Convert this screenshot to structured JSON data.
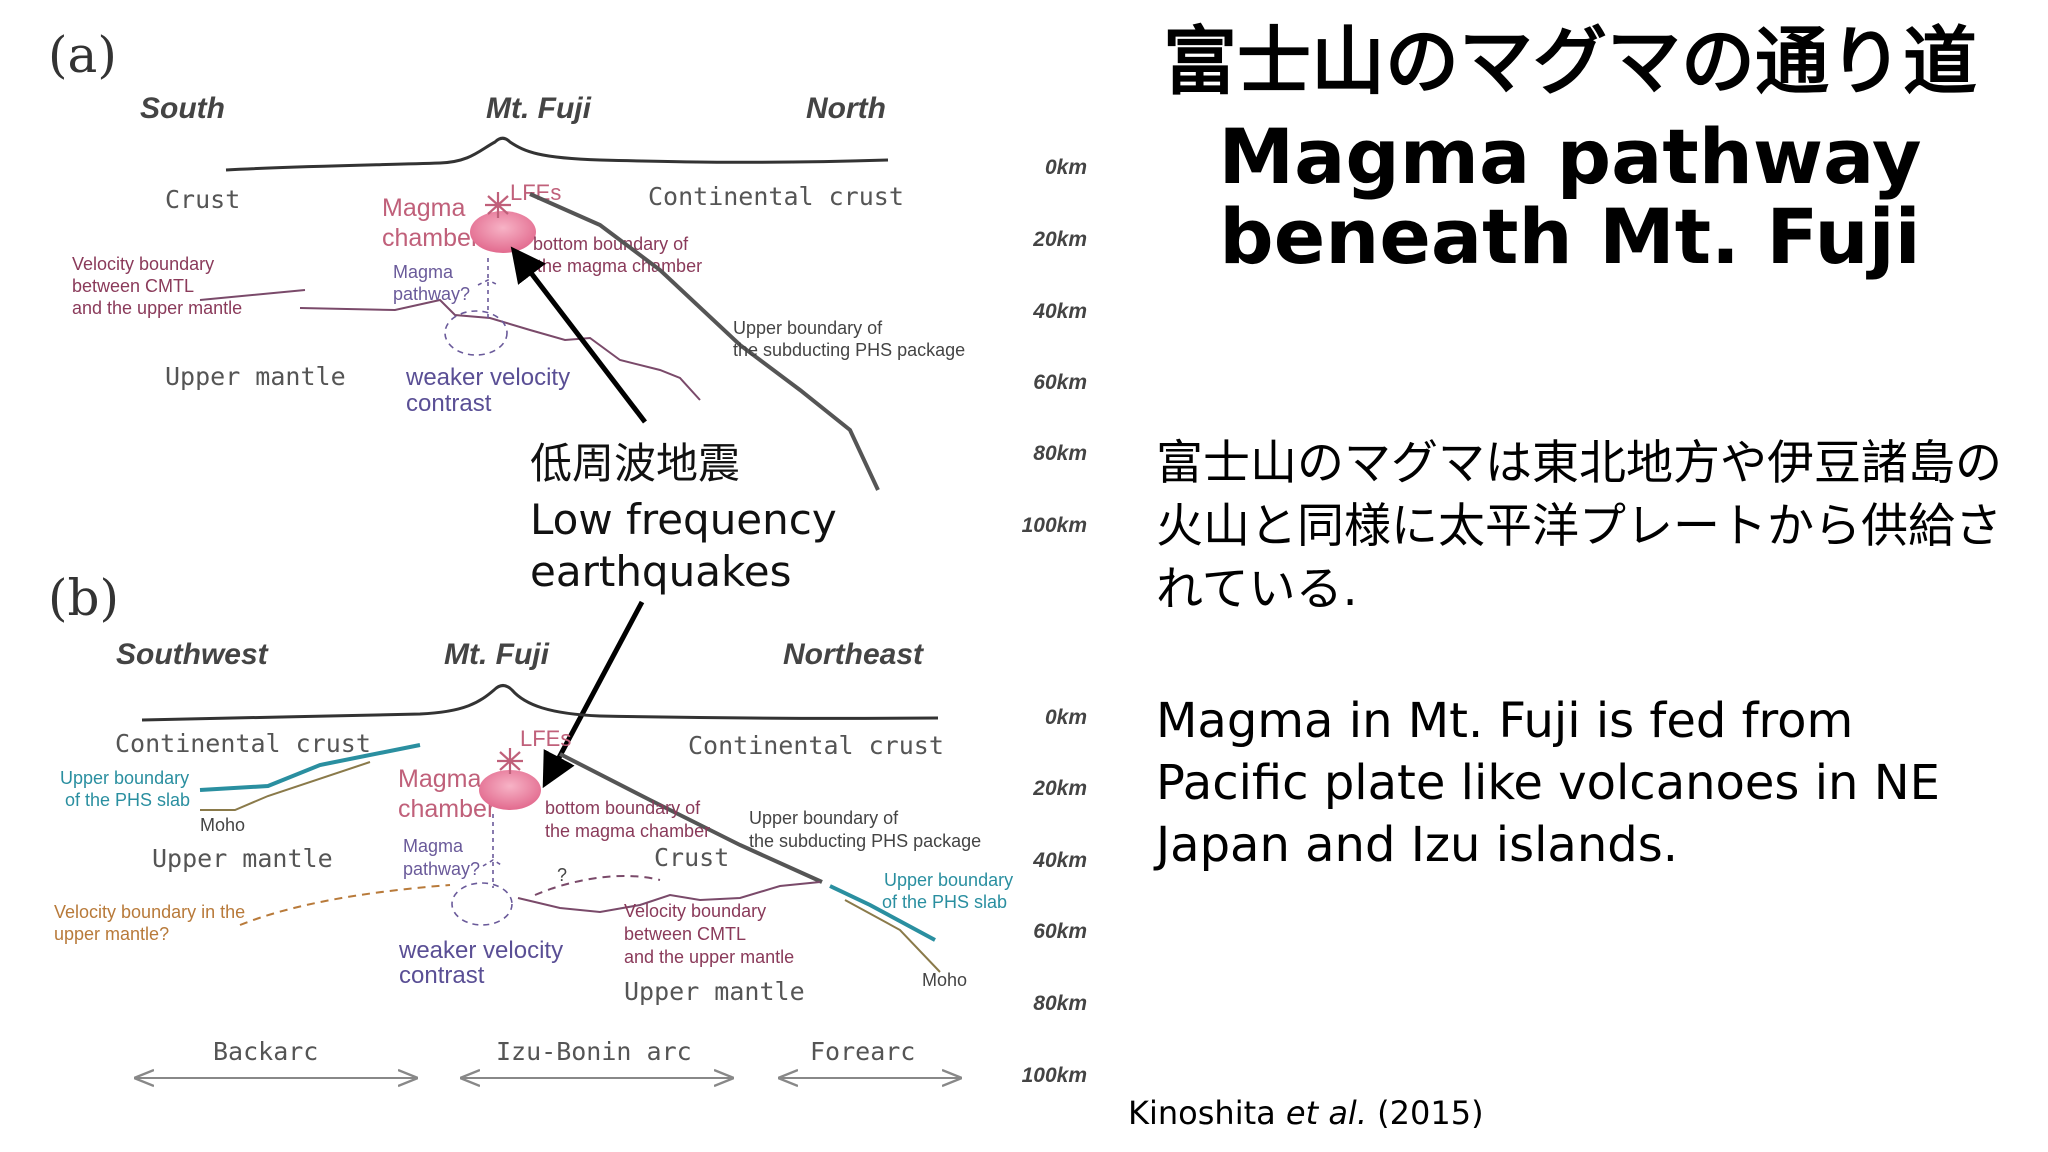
{
  "panel_a": {
    "label": "(a)",
    "directions": {
      "left": "South",
      "center": "Mt. Fuji",
      "right": "North"
    },
    "labels": {
      "crust": "Crust",
      "continental_crust": "Continental crust",
      "magma_chamber_line1": "Magma",
      "magma_chamber_line2": "chamber",
      "lfes": "LFEs",
      "bottom_boundary_line1": "bottom boundary of",
      "bottom_boundary_line2": "the magma chamber",
      "velocity_boundary_line1": "Velocity boundary",
      "velocity_boundary_line2": "between CMTL",
      "velocity_boundary_line3": "and the upper mantle",
      "magma_pathway_line1": "Magma",
      "magma_pathway_line2": "pathway?",
      "upper_boundary_line1": "Upper boundary of",
      "upper_boundary_line2": "the subducting PHS package",
      "upper_mantle": "Upper mantle",
      "weaker_velocity_line1": "weaker velocity",
      "weaker_velocity_line2": "contrast"
    }
  },
  "panel_b": {
    "label": "(b)",
    "directions": {
      "left": "Southwest",
      "center": "Mt. Fuji",
      "right": "Northeast"
    },
    "labels": {
      "continental_crust_left": "Continental crust",
      "continental_crust_right": "Continental crust",
      "lfes": "LFEs",
      "upper_boundary_phs_line1": "Upper boundary",
      "upper_boundary_phs_line2": "of the PHS slab",
      "moho_left": "Moho",
      "magma_chamber_line1": "Magma",
      "magma_chamber_line2": "chamber",
      "bottom_boundary_line1": "bottom boundary of",
      "bottom_boundary_line2": "the magma chamber",
      "upper_boundary_sub_line1": "Upper boundary of",
      "upper_boundary_sub_line2": "the subducting PHS package",
      "upper_mantle_left": "Upper mantle",
      "crust": "Crust",
      "magma_pathway_line1": "Magma",
      "magma_pathway_line2": "pathway?",
      "question": "?",
      "upper_boundary_slab_line1": "Upper boundary",
      "upper_boundary_slab_line2": "of the PHS slab",
      "velocity_boundary_left_line1": "Velocity boundary in the",
      "velocity_boundary_left_line2": "upper mantle?",
      "velocity_boundary_mid_line1": "Velocity boundary",
      "velocity_boundary_mid_line2": "between CMTL",
      "velocity_boundary_mid_line3": "and the upper mantle",
      "weaker_velocity_line1": "weaker velocity",
      "weaker_velocity_line2": "contrast",
      "moho_right": "Moho",
      "upper_mantle_bottom": "Upper mantle",
      "backarc": "Backarc",
      "izu_bonin_arc": "Izu-Bonin arc",
      "forearc": "Forearc"
    }
  },
  "depth_labels": [
    "0km",
    "20km",
    "40km",
    "60km",
    "80km",
    "100km"
  ],
  "annotation": {
    "jp": "低周波地震",
    "en_line1": "Low frequency",
    "en_line2": "earthquakes"
  },
  "title": {
    "jp": "富士山のマグマの通り道",
    "en_line1": "Magma pathway",
    "en_line2": "beneath Mt. Fuji"
  },
  "body": {
    "jp": "富士山のマグマは東北地方や伊豆諸島の火山と同様に太平洋プレートから供給されている.",
    "en": "Magma in Mt. Fuji is fed from Pacific plate like volcanoes in NE Japan and Izu islands."
  },
  "citation": {
    "author": "Kinoshita",
    "etal": "et al.",
    "year": "(2015)"
  },
  "colors": {
    "magma": "#e26a8e",
    "slab_teal": "#2a8fa0",
    "moho_olive": "#8a7a4a",
    "boundary_purple": "#7a4a6a",
    "pathway_purple": "#5a4f95",
    "orange_dashed": "#b87a3a"
  }
}
